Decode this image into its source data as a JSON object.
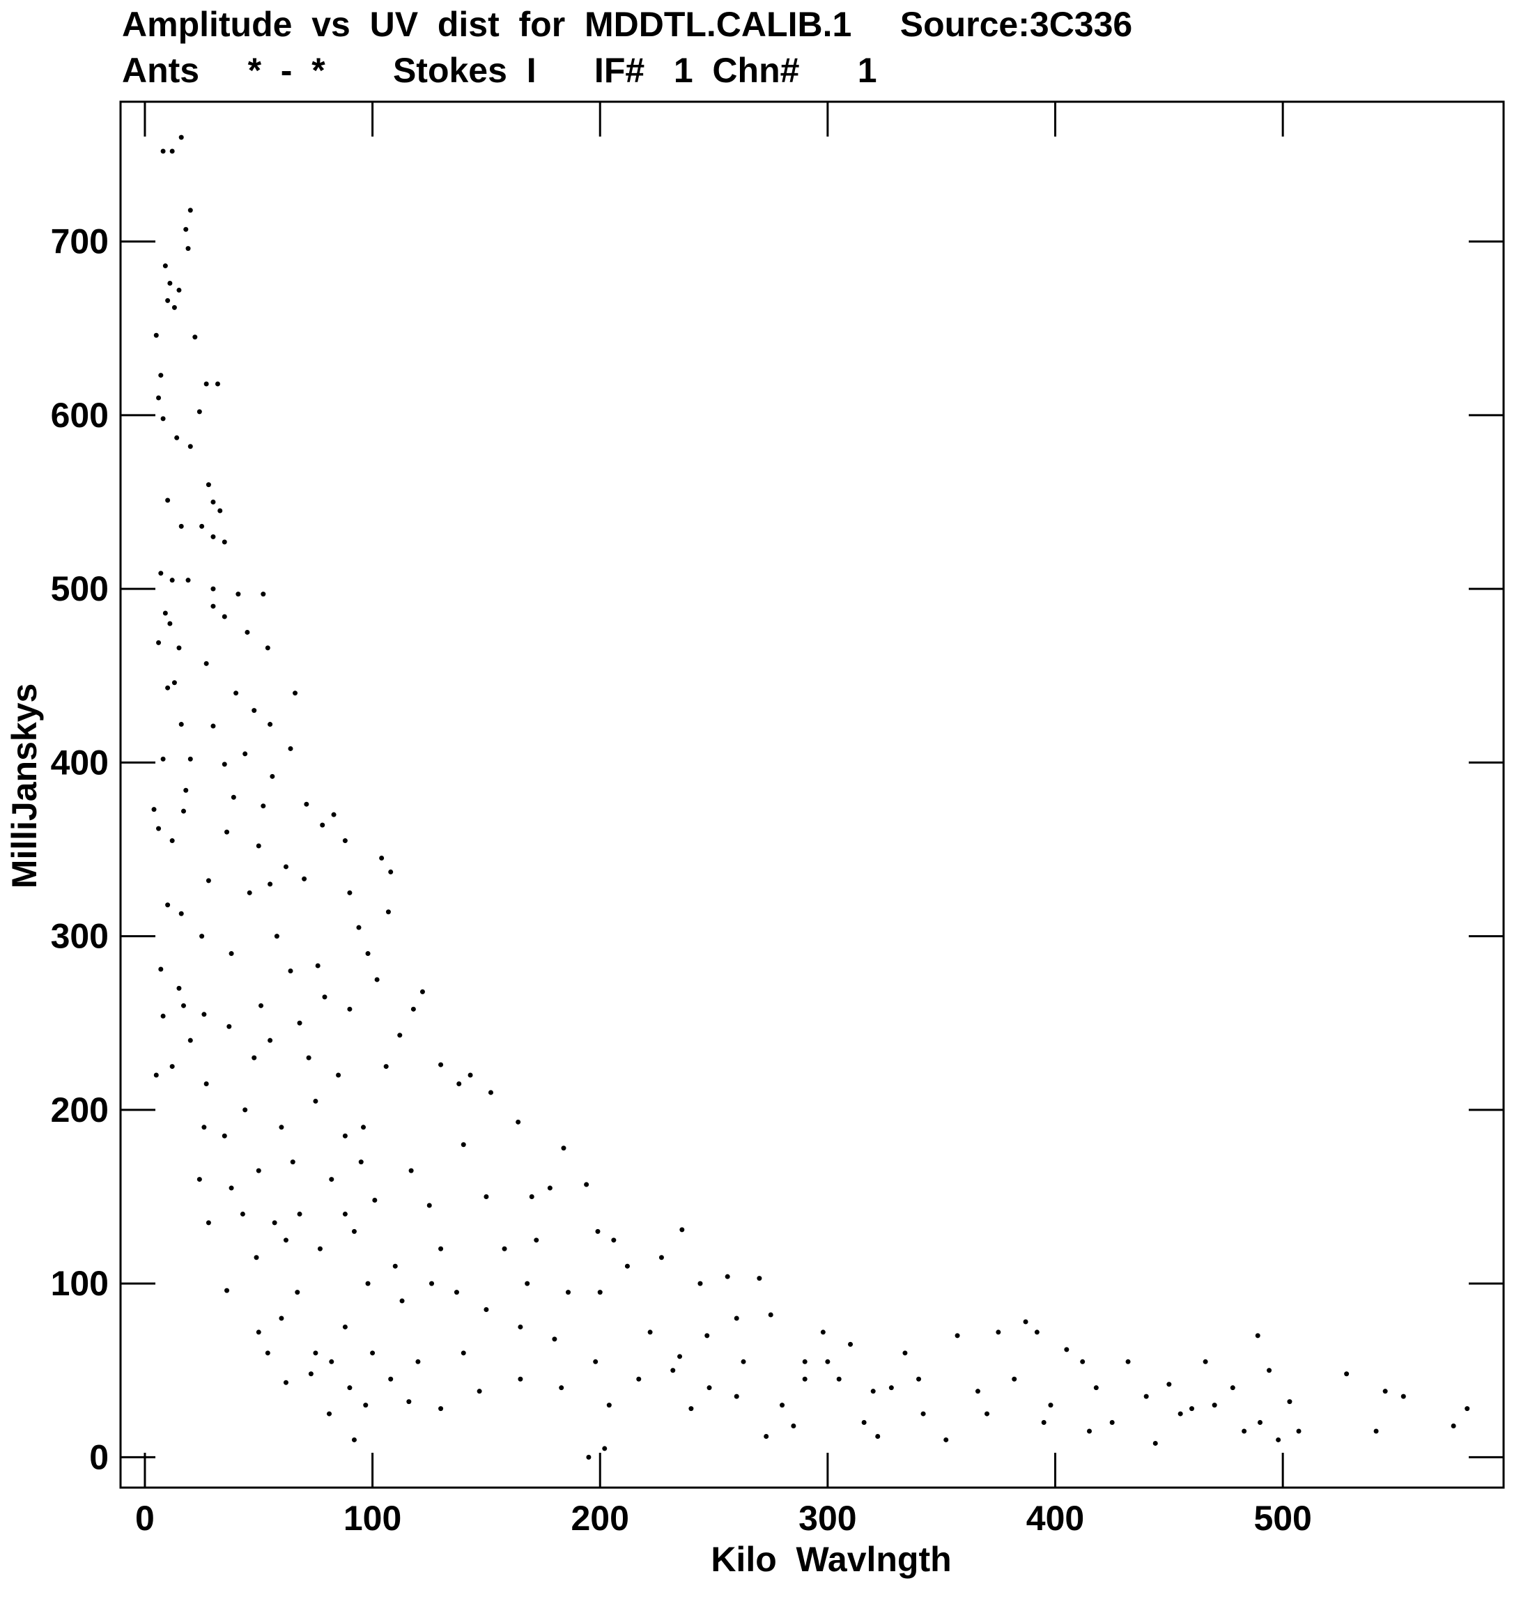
{
  "chart_data": {
    "type": "scatter",
    "title": "Amplitude  vs  UV  dist  for  MDDTL.CALIB.1     Source:3C336",
    "subtitle": "Ants     *  -  *       Stokes  I      IF#   1  Chn#      1",
    "x_label": "Kilo  Wavlngth",
    "y_label": "MilliJanskys",
    "color": "#000000",
    "xlim": [
      -10.7,
      597
    ],
    "ylim": [
      -17.5,
      780.5
    ],
    "xticks": [
      0,
      100,
      200,
      300,
      400,
      500
    ],
    "yticks": [
      0,
      100,
      200,
      300,
      400,
      500,
      600,
      700
    ],
    "x": [
      8,
      12,
      16,
      18,
      19,
      20,
      9,
      11,
      13,
      15,
      10,
      5,
      22,
      24,
      7,
      8,
      6,
      27,
      32,
      14,
      20,
      28,
      30,
      33,
      25,
      16,
      10,
      30,
      35,
      7,
      12,
      19,
      30,
      41,
      52,
      9,
      11,
      30,
      45,
      35,
      6,
      15,
      54,
      27,
      10,
      13,
      40,
      48,
      55,
      66,
      16,
      30,
      20,
      8,
      35,
      44,
      56,
      64,
      18,
      17,
      4,
      39,
      52,
      71,
      6,
      12,
      36,
      50,
      78,
      83,
      88,
      10,
      16,
      28,
      46,
      55,
      62,
      70,
      90,
      104,
      108,
      107,
      7,
      15,
      25,
      38,
      58,
      64,
      76,
      94,
      98,
      102,
      8,
      17,
      26,
      37,
      51,
      68,
      79,
      90,
      118,
      122,
      5,
      12,
      20,
      27,
      48,
      55,
      72,
      85,
      106,
      112,
      130,
      26,
      35,
      44,
      60,
      75,
      88,
      96,
      138,
      143,
      152,
      24,
      38,
      50,
      65,
      82,
      95,
      117,
      140,
      164,
      184,
      194,
      28,
      43,
      57,
      68,
      88,
      101,
      125,
      150,
      170,
      178,
      36,
      49,
      62,
      77,
      92,
      110,
      130,
      158,
      172,
      199,
      206,
      236,
      50,
      54,
      60,
      67,
      75,
      88,
      98,
      113,
      126,
      137,
      150,
      168,
      186,
      200,
      212,
      227,
      244,
      256,
      270,
      62,
      73,
      81,
      92,
      97,
      108,
      116,
      130,
      147,
      165,
      183,
      198,
      204,
      217,
      232,
      248,
      263,
      273,
      280,
      290,
      298,
      305,
      310,
      316,
      322,
      328,
      334,
      342,
      352,
      357,
      366,
      375,
      382,
      387,
      392,
      398,
      405,
      412,
      418,
      425,
      432,
      444,
      450,
      455,
      466,
      470,
      478,
      483,
      489,
      494,
      503,
      507,
      528,
      541,
      545,
      553,
      575,
      581,
      195,
      202,
      290,
      300,
      247,
      260,
      275,
      222,
      235,
      180,
      165,
      140,
      120,
      100,
      90,
      82,
      260,
      240,
      285,
      320,
      340,
      370,
      395,
      415,
      440,
      460,
      490,
      498
    ],
    "values": [
      752,
      752,
      760,
      707,
      696,
      718,
      686,
      676,
      662,
      672,
      666,
      646,
      645,
      602,
      623,
      598,
      610,
      618,
      618,
      587,
      582,
      560,
      550,
      545,
      536,
      536,
      551,
      530,
      527,
      509,
      505,
      505,
      500,
      497,
      497,
      486,
      480,
      490,
      475,
      484,
      469,
      466,
      466,
      457,
      443,
      446,
      440,
      430,
      422,
      440,
      422,
      421,
      402,
      402,
      399,
      405,
      392,
      408,
      384,
      372,
      373,
      380,
      375,
      376,
      362,
      355,
      360,
      352,
      364,
      370,
      355,
      318,
      313,
      332,
      325,
      330,
      340,
      333,
      325,
      345,
      337,
      314,
      281,
      270,
      300,
      290,
      300,
      280,
      283,
      305,
      290,
      275,
      254,
      260,
      255,
      248,
      260,
      250,
      265,
      258,
      258,
      268,
      220,
      225,
      240,
      215,
      230,
      240,
      230,
      220,
      225,
      243,
      226,
      190,
      185,
      200,
      190,
      205,
      185,
      190,
      215,
      220,
      210,
      160,
      155,
      165,
      170,
      160,
      170,
      165,
      180,
      193,
      178,
      157,
      135,
      140,
      135,
      140,
      140,
      148,
      145,
      150,
      150,
      155,
      96,
      115,
      125,
      120,
      130,
      110,
      120,
      120,
      125,
      130,
      125,
      131,
      72,
      60,
      80,
      95,
      60,
      75,
      100,
      90,
      100,
      95,
      85,
      100,
      95,
      95,
      110,
      115,
      100,
      104,
      103,
      43,
      48,
      25,
      10,
      30,
      45,
      32,
      28,
      38,
      45,
      40,
      55,
      30,
      45,
      50,
      40,
      55,
      12,
      30,
      55,
      72,
      45,
      65,
      20,
      12,
      40,
      60,
      25,
      10,
      70,
      38,
      72,
      45,
      78,
      72,
      30,
      62,
      55,
      40,
      20,
      55,
      8,
      42,
      25,
      55,
      30,
      40,
      15,
      70,
      50,
      32,
      15,
      48,
      15,
      38,
      35,
      18,
      28,
      0,
      5,
      45,
      55,
      70,
      80,
      82,
      72,
      58,
      68,
      75,
      60,
      55,
      60,
      40,
      55,
      35,
      28,
      18,
      38,
      45,
      25,
      20,
      15,
      35,
      28,
      20,
      10
    ]
  }
}
